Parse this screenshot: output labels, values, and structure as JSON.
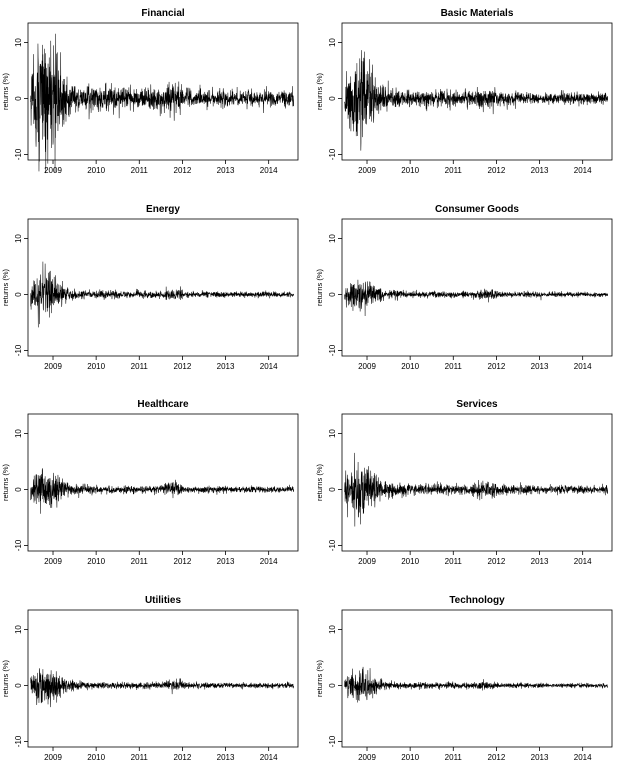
{
  "chart_data": [
    {
      "type": "line",
      "title": "Financial",
      "ylabel": "returns (%)",
      "xticks": [
        2009,
        2010,
        2011,
        2012,
        2013,
        2014
      ],
      "yticks": [
        -10,
        0,
        10
      ],
      "xlim": [
        2008.42,
        2014.68
      ],
      "ylim": [
        -11,
        13.5
      ],
      "volatility": {
        "peak": 6.0,
        "calm": 0.95,
        "bump": 0.55
      }
    },
    {
      "type": "line",
      "title": "Basic Materials",
      "ylabel": "returns (%)",
      "xticks": [
        2009,
        2010,
        2011,
        2012,
        2013,
        2014
      ],
      "yticks": [
        -10,
        0,
        10
      ],
      "xlim": [
        2008.42,
        2014.68
      ],
      "ylim": [
        -11,
        13.5
      ],
      "volatility": {
        "peak": 3.6,
        "calm": 0.7,
        "bump": 0.35
      }
    },
    {
      "type": "line",
      "title": "Energy",
      "ylabel": "returns (%)",
      "xticks": [
        2009,
        2010,
        2011,
        2012,
        2013,
        2014
      ],
      "yticks": [
        -10,
        0,
        10
      ],
      "xlim": [
        2008.42,
        2014.68
      ],
      "ylim": [
        -11,
        13.5
      ],
      "volatility": {
        "peak": 1.9,
        "calm": 0.32,
        "bump": 0.18
      }
    },
    {
      "type": "line",
      "title": "Consumer Goods",
      "ylabel": "returns (%)",
      "xticks": [
        2009,
        2010,
        2011,
        2012,
        2013,
        2014
      ],
      "yticks": [
        -10,
        0,
        10
      ],
      "xlim": [
        2008.42,
        2014.68
      ],
      "ylim": [
        -11,
        13.5
      ],
      "volatility": {
        "peak": 1.45,
        "calm": 0.28,
        "bump": 0.15
      }
    },
    {
      "type": "line",
      "title": "Healthcare",
      "ylabel": "returns (%)",
      "xticks": [
        2009,
        2010,
        2011,
        2012,
        2013,
        2014
      ],
      "yticks": [
        -10,
        0,
        10
      ],
      "xlim": [
        2008.42,
        2014.68
      ],
      "ylim": [
        -11,
        13.5
      ],
      "volatility": {
        "peak": 1.9,
        "calm": 0.35,
        "bump": 0.22
      }
    },
    {
      "type": "line",
      "title": "Services",
      "ylabel": "returns (%)",
      "xticks": [
        2009,
        2010,
        2011,
        2012,
        2013,
        2014
      ],
      "yticks": [
        -10,
        0,
        10
      ],
      "xlim": [
        2008.42,
        2014.68
      ],
      "ylim": [
        -11,
        13.5
      ],
      "volatility": {
        "peak": 2.6,
        "calm": 0.5,
        "bump": 0.3
      }
    },
    {
      "type": "line",
      "title": "Utilities",
      "ylabel": "returns (%)",
      "xticks": [
        2009,
        2010,
        2011,
        2012,
        2013,
        2014
      ],
      "yticks": [
        -10,
        0,
        10
      ],
      "xlim": [
        2008.42,
        2014.68
      ],
      "ylim": [
        -11,
        13.5
      ],
      "volatility": {
        "peak": 1.7,
        "calm": 0.3,
        "bump": 0.18
      }
    },
    {
      "type": "line",
      "title": "Technology",
      "ylabel": "returns (%)",
      "xticks": [
        2009,
        2010,
        2011,
        2012,
        2013,
        2014
      ],
      "yticks": [
        -10,
        0,
        10
      ],
      "xlim": [
        2008.42,
        2014.68
      ],
      "ylim": [
        -11,
        13.5
      ],
      "volatility": {
        "peak": 1.35,
        "calm": 0.25,
        "bump": 0.12
      }
    }
  ]
}
